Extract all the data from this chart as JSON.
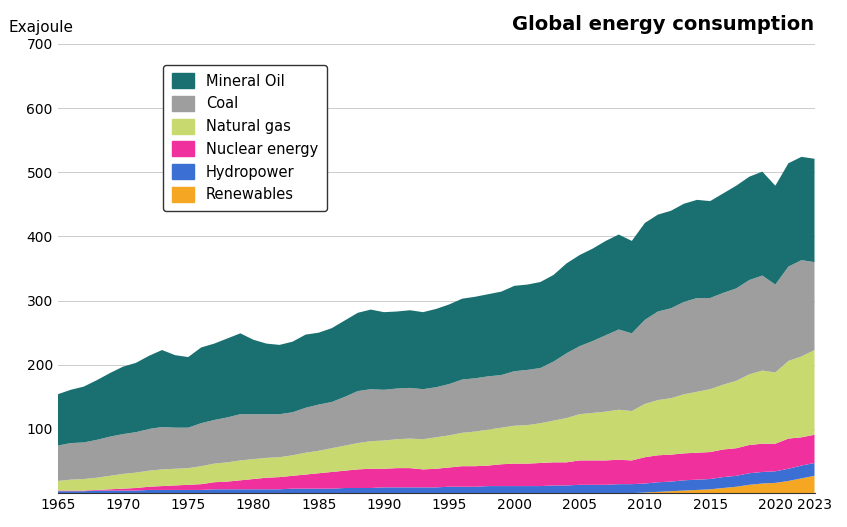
{
  "title": "Global energy consumption",
  "ylabel": "Exajoule",
  "ylim": [
    0,
    700
  ],
  "yticks": [
    100,
    200,
    300,
    400,
    500,
    600,
    700
  ],
  "xlim": [
    1965,
    2023
  ],
  "xticks": [
    1965,
    1970,
    1975,
    1980,
    1985,
    1990,
    1995,
    2000,
    2005,
    2010,
    2015,
    2020,
    2023
  ],
  "background_color": "#ffffff",
  "series_names": [
    "Renewables",
    "Hydropower",
    "Nuclear energy",
    "Natural gas",
    "Coal",
    "Mineral Oil"
  ],
  "series_colors": [
    "#f5a623",
    "#3b6fd4",
    "#f0309c",
    "#c8d96f",
    "#9e9e9e",
    "#1a7070"
  ],
  "years": [
    1965,
    1966,
    1967,
    1968,
    1969,
    1970,
    1971,
    1972,
    1973,
    1974,
    1975,
    1976,
    1977,
    1978,
    1979,
    1980,
    1981,
    1982,
    1983,
    1984,
    1985,
    1986,
    1987,
    1988,
    1989,
    1990,
    1991,
    1992,
    1993,
    1994,
    1995,
    1996,
    1997,
    1998,
    1999,
    2000,
    2001,
    2002,
    2003,
    2004,
    2005,
    2006,
    2007,
    2008,
    2009,
    2010,
    2011,
    2012,
    2013,
    2014,
    2015,
    2016,
    2017,
    2018,
    2019,
    2020,
    2021,
    2022,
    2023
  ],
  "renewables": [
    0,
    0,
    0,
    0,
    0,
    0,
    0,
    0,
    0,
    0,
    0,
    0,
    0,
    0,
    0,
    0,
    0,
    0,
    0,
    0,
    0,
    0,
    0,
    0,
    0,
    0,
    0,
    0,
    0,
    0,
    0,
    0,
    0,
    0,
    0,
    0,
    0,
    0,
    0,
    0,
    0,
    0,
    0,
    0,
    0,
    1,
    2,
    3,
    4,
    5,
    6,
    8,
    10,
    13,
    15,
    16,
    19,
    23,
    27
  ],
  "hydropower": [
    3,
    3,
    3,
    4,
    4,
    4,
    4,
    5,
    5,
    5,
    5,
    5,
    6,
    6,
    6,
    6,
    6,
    6,
    7,
    7,
    7,
    7,
    8,
    8,
    8,
    9,
    9,
    9,
    9,
    9,
    10,
    10,
    10,
    11,
    11,
    11,
    11,
    11,
    12,
    12,
    13,
    13,
    13,
    14,
    14,
    14,
    15,
    15,
    16,
    16,
    16,
    17,
    17,
    18,
    18,
    18,
    19,
    20,
    20
  ],
  "nuclear": [
    1,
    1,
    1,
    1,
    2,
    3,
    4,
    5,
    6,
    7,
    8,
    9,
    11,
    12,
    14,
    16,
    18,
    19,
    20,
    22,
    24,
    26,
    27,
    29,
    30,
    29,
    30,
    30,
    28,
    29,
    30,
    32,
    32,
    32,
    34,
    35,
    35,
    36,
    36,
    36,
    38,
    38,
    38,
    38,
    37,
    41,
    42,
    42,
    42,
    42,
    42,
    43,
    43,
    44,
    44,
    43,
    47,
    44,
    44
  ],
  "natural_gas": [
    15,
    17,
    18,
    19,
    21,
    23,
    24,
    25,
    26,
    26,
    26,
    28,
    29,
    30,
    31,
    31,
    31,
    31,
    32,
    34,
    35,
    37,
    39,
    41,
    43,
    44,
    45,
    46,
    47,
    49,
    50,
    52,
    54,
    56,
    57,
    59,
    60,
    62,
    65,
    69,
    72,
    74,
    76,
    78,
    77,
    83,
    86,
    88,
    92,
    95,
    98,
    101,
    105,
    110,
    114,
    111,
    121,
    126,
    132
  ],
  "coal": [
    55,
    57,
    57,
    59,
    61,
    62,
    63,
    65,
    66,
    64,
    63,
    67,
    68,
    70,
    72,
    70,
    68,
    67,
    67,
    70,
    72,
    72,
    76,
    81,
    81,
    79,
    79,
    79,
    78,
    78,
    80,
    83,
    83,
    83,
    82,
    85,
    86,
    86,
    92,
    101,
    106,
    112,
    119,
    125,
    121,
    131,
    138,
    140,
    144,
    146,
    142,
    143,
    144,
    147,
    148,
    137,
    147,
    150,
    137
  ],
  "mineral_oil": [
    80,
    83,
    87,
    93,
    99,
    105,
    108,
    114,
    120,
    113,
    110,
    118,
    119,
    123,
    126,
    116,
    110,
    108,
    110,
    114,
    112,
    115,
    119,
    122,
    124,
    121,
    120,
    121,
    120,
    122,
    124,
    126,
    127,
    128,
    130,
    133,
    133,
    134,
    135,
    140,
    142,
    144,
    147,
    148,
    144,
    151,
    151,
    152,
    153,
    153,
    151,
    155,
    160,
    161,
    162,
    154,
    161,
    161,
    161
  ]
}
